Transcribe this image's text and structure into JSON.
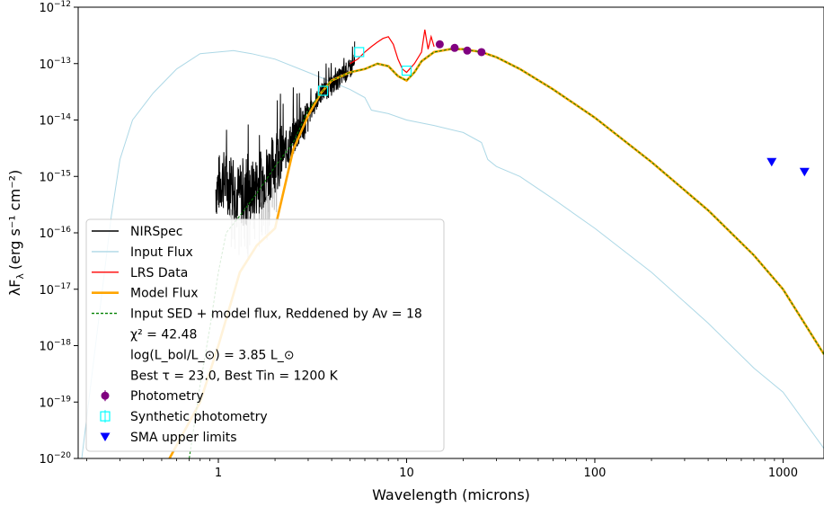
{
  "chart_data": {
    "type": "line",
    "xlabel": "Wavelength (microns)",
    "ylabel_prefix": "λF",
    "ylabel_sub": "λ",
    "ylabel_units": "(erg s⁻¹ cm⁻²)",
    "xscale": "log",
    "yscale": "log",
    "xlim": [
      0.18,
      1650
    ],
    "ylim": [
      1e-20,
      1e-12
    ],
    "grid": false,
    "legend_position": "lower-left",
    "x_ticks": [
      {
        "value": 1,
        "label": "1"
      },
      {
        "value": 10,
        "label": "10"
      },
      {
        "value": 100,
        "label": "100"
      },
      {
        "value": 1000,
        "label": "1000"
      }
    ],
    "y_ticks": [
      {
        "exp": -20,
        "label": "10",
        "sup": "−20"
      },
      {
        "exp": -19,
        "label": "10",
        "sup": "−19"
      },
      {
        "exp": -18,
        "label": "10",
        "sup": "−18"
      },
      {
        "exp": -17,
        "label": "10",
        "sup": "−17"
      },
      {
        "exp": -16,
        "label": "10",
        "sup": "−16"
      },
      {
        "exp": -15,
        "label": "10",
        "sup": "−15"
      },
      {
        "exp": -14,
        "label": "10",
        "sup": "−14"
      },
      {
        "exp": -13,
        "label": "10",
        "sup": "−13"
      },
      {
        "exp": -12,
        "label": "10",
        "sup": "−12"
      }
    ],
    "legend": [
      {
        "key": "nirspec",
        "label": "NIRSpec"
      },
      {
        "key": "input_flux",
        "label": "Input Flux"
      },
      {
        "key": "lrs",
        "label": "LRS Data"
      },
      {
        "key": "model_flux",
        "label": "Model Flux"
      },
      {
        "key": "input_sed",
        "label": "Input SED + model flux, Reddened by Av = 18"
      },
      {
        "key": "chi2",
        "label": "χ² = 42.48"
      },
      {
        "key": "lbol",
        "label": "log(L_bol/L_⊙) = 3.85 L_⊙"
      },
      {
        "key": "best",
        "label": "Best τ = 23.0, Best Tin = 1200 K"
      },
      {
        "key": "photometry",
        "label": "Photometry"
      },
      {
        "key": "synthetic",
        "label": "Synthetic photometry"
      },
      {
        "key": "sma",
        "label": "SMA upper limits"
      }
    ],
    "colors": {
      "nirspec": "#000000",
      "input_flux": "#add8e6",
      "lrs": "#ff0000",
      "model_flux": "#ffa500",
      "input_sed": "#008000",
      "photometry": "#800080",
      "synthetic": "#00ffff",
      "sma": "#0000ff"
    },
    "series": [
      {
        "name": "Input Flux",
        "key": "input_flux",
        "points": [
          [
            0.18,
            3e-21
          ],
          [
            0.27,
            2e-16
          ],
          [
            0.3,
            2e-15
          ],
          [
            0.35,
            1e-14
          ],
          [
            0.45,
            3e-14
          ],
          [
            0.6,
            8e-14
          ],
          [
            0.8,
            1.5e-13
          ],
          [
            1.2,
            1.7e-13
          ],
          [
            1.5,
            1.5e-13
          ],
          [
            2.0,
            1.2e-13
          ],
          [
            3.0,
            7e-14
          ],
          [
            5.0,
            3.5e-14
          ],
          [
            6.0,
            2.5e-14
          ],
          [
            6.5,
            1.5e-14
          ],
          [
            8.0,
            1.3e-14
          ],
          [
            10,
            1e-14
          ],
          [
            14,
            8e-15
          ],
          [
            20,
            6e-15
          ],
          [
            25,
            4e-15
          ],
          [
            27,
            2e-15
          ],
          [
            30,
            1.5e-15
          ],
          [
            40,
            1e-15
          ],
          [
            60,
            4e-16
          ],
          [
            100,
            1.2e-16
          ],
          [
            200,
            2e-17
          ],
          [
            400,
            2.5e-18
          ],
          [
            700,
            4e-19
          ],
          [
            1000,
            1.5e-19
          ],
          [
            1650,
            1.5e-20
          ]
        ]
      },
      {
        "name": "Model Flux",
        "key": "model_flux",
        "points": [
          [
            0.55,
            1e-20
          ],
          [
            0.8,
            1e-19
          ],
          [
            1.0,
            1e-18
          ],
          [
            1.3,
            2e-17
          ],
          [
            1.6,
            6e-17
          ],
          [
            2.0,
            1.2e-16
          ],
          [
            2.5,
            3e-15
          ],
          [
            3.0,
            1.2e-14
          ],
          [
            3.5,
            3e-14
          ],
          [
            4.0,
            5e-14
          ],
          [
            5.0,
            7e-14
          ],
          [
            6.0,
            8e-14
          ],
          [
            7.0,
            1e-13
          ],
          [
            8.0,
            9e-14
          ],
          [
            9.0,
            6e-14
          ],
          [
            10,
            5e-14
          ],
          [
            11,
            7e-14
          ],
          [
            12,
            1.1e-13
          ],
          [
            14,
            1.6e-13
          ],
          [
            17,
            1.8e-13
          ],
          [
            20,
            1.8e-13
          ],
          [
            25,
            1.6e-13
          ],
          [
            30,
            1.3e-13
          ],
          [
            40,
            8e-14
          ],
          [
            60,
            3.5e-14
          ],
          [
            100,
            1.1e-14
          ],
          [
            200,
            1.8e-15
          ],
          [
            400,
            2.5e-16
          ],
          [
            700,
            4e-17
          ],
          [
            1000,
            1e-17
          ],
          [
            1650,
            7e-19
          ]
        ]
      },
      {
        "name": "Input SED + model flux, Reddened by Av = 18",
        "key": "input_sed",
        "points": [
          [
            0.7,
            1e-20
          ],
          [
            0.8,
            2e-19
          ],
          [
            0.9,
            2e-18
          ],
          [
            1.0,
            2e-17
          ],
          [
            1.1,
            1e-16
          ],
          [
            1.3,
            2e-16
          ],
          [
            1.6,
            5e-16
          ],
          [
            2.0,
            1.5e-15
          ],
          [
            2.5,
            4e-15
          ],
          [
            3.0,
            1.5e-14
          ],
          [
            3.5,
            3e-14
          ],
          [
            4.0,
            5e-14
          ],
          [
            5.0,
            7e-14
          ],
          [
            6.0,
            8e-14
          ],
          [
            7.0,
            1e-13
          ],
          [
            8.0,
            9e-14
          ],
          [
            9.0,
            6e-14
          ],
          [
            10,
            5e-14
          ],
          [
            11,
            7e-14
          ],
          [
            12,
            1.1e-13
          ],
          [
            14,
            1.6e-13
          ],
          [
            17,
            1.8e-13
          ],
          [
            20,
            1.8e-13
          ],
          [
            25,
            1.6e-13
          ],
          [
            30,
            1.3e-13
          ],
          [
            40,
            8e-14
          ],
          [
            60,
            3.5e-14
          ],
          [
            100,
            1.1e-14
          ],
          [
            200,
            1.8e-15
          ],
          [
            400,
            2.5e-16
          ],
          [
            700,
            4e-17
          ],
          [
            1000,
            1e-17
          ],
          [
            1650,
            7e-19
          ]
        ]
      },
      {
        "name": "LRS Data",
        "key": "lrs",
        "points": [
          [
            5.0,
            1e-13
          ],
          [
            5.5,
            1.2e-13
          ],
          [
            6.0,
            1.6e-13
          ],
          [
            6.5,
            2e-13
          ],
          [
            7.0,
            2.4e-13
          ],
          [
            7.5,
            2.8e-13
          ],
          [
            8.0,
            3e-13
          ],
          [
            8.5,
            2.2e-13
          ],
          [
            9.0,
            1.2e-13
          ],
          [
            9.5,
            8e-14
          ],
          [
            10,
            7e-14
          ],
          [
            11,
            1e-13
          ],
          [
            12,
            1.6e-13
          ],
          [
            12.5,
            4e-13
          ],
          [
            13,
            1.8e-13
          ],
          [
            13.5,
            3e-13
          ],
          [
            14,
            2e-13
          ]
        ]
      }
    ],
    "nirspec": {
      "name": "NIRSpec",
      "envelope": [
        [
          0.97,
          6e-16
        ],
        [
          1.05,
          9e-16
        ],
        [
          1.2,
          6e-16
        ],
        [
          1.4,
          4e-16
        ],
        [
          1.6,
          7e-16
        ],
        [
          1.8,
          1.1e-15
        ],
        [
          2.0,
          1.8e-15
        ],
        [
          2.3,
          3e-15
        ],
        [
          2.6,
          6e-15
        ],
        [
          3.0,
          1.2e-14
        ],
        [
          3.5,
          3e-14
        ],
        [
          4.0,
          4e-14
        ],
        [
          4.5,
          6e-14
        ],
        [
          5.0,
          8e-14
        ],
        [
          5.3,
          1e-13
        ]
      ]
    },
    "photometry": {
      "name": "Photometry",
      "points": [
        [
          15,
          2.2e-13
        ],
        [
          18,
          1.9e-13
        ],
        [
          21,
          1.7e-13
        ],
        [
          25,
          1.6e-13
        ]
      ]
    },
    "synthetic": {
      "name": "Synthetic photometry",
      "points": [
        [
          3.6,
          3.3e-14
        ],
        [
          5.6,
          1.6e-13
        ],
        [
          10,
          7.5e-14
        ]
      ]
    },
    "sma": {
      "name": "SMA upper limits",
      "points": [
        [
          870,
          1.8e-15
        ],
        [
          1300,
          1.2e-15
        ]
      ]
    }
  }
}
